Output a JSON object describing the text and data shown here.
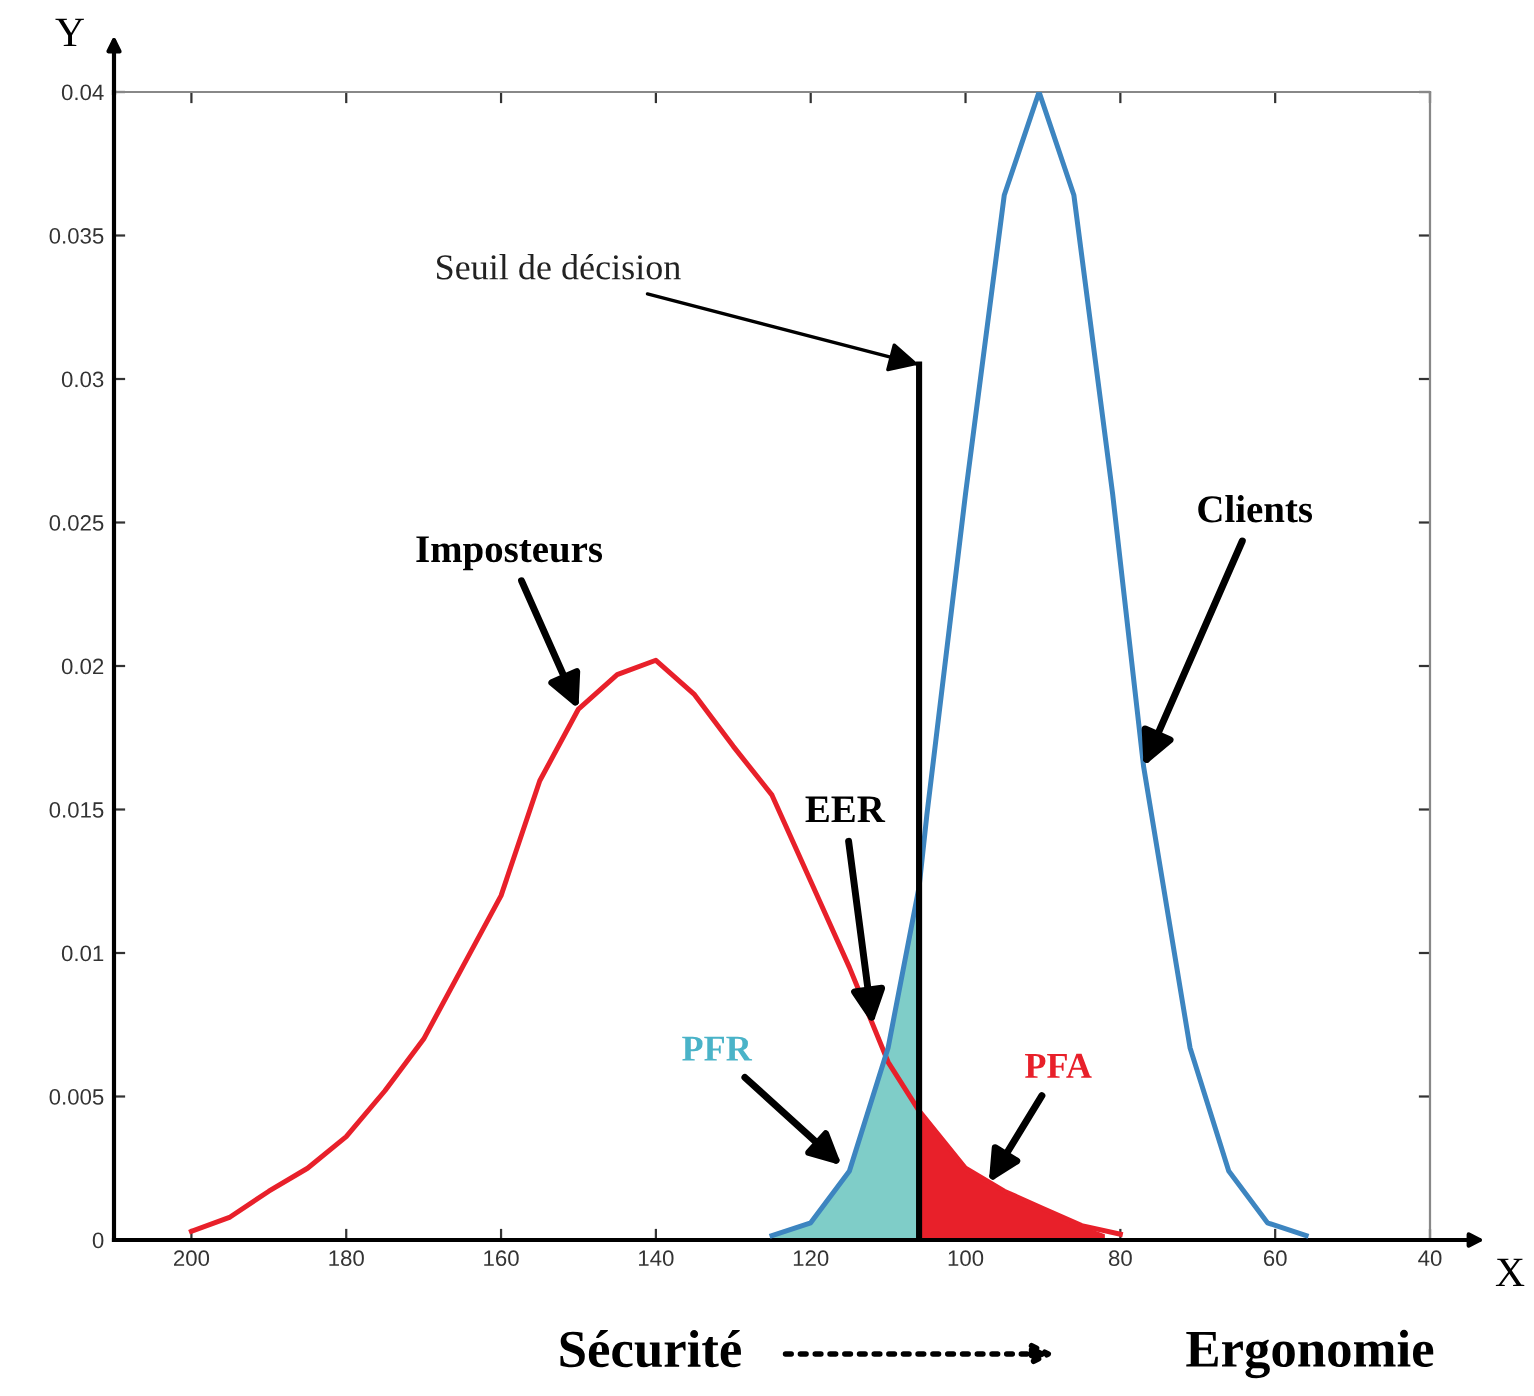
{
  "chart_data": {
    "type": "line",
    "xlabel": "X",
    "ylabel": "Y",
    "xlim": [
      210,
      40
    ],
    "ylim": [
      0,
      0.04
    ],
    "xticks": [
      200,
      180,
      160,
      140,
      120,
      100,
      80,
      60,
      40
    ],
    "yticks": [
      0,
      0.005,
      0.01,
      0.015,
      0.02,
      0.025,
      0.03,
      0.035,
      0.04
    ],
    "grid": false,
    "legend": false,
    "marker": "none",
    "line_style": "solid",
    "series": [
      {
        "type": "area",
        "color": "#7fcdc8",
        "x": [
          125,
          120,
          115,
          110,
          106
        ],
        "values": [
          0.00015,
          0.0006,
          0.0024,
          0.0067,
          0.0123
        ]
      },
      {
        "type": "area",
        "color": "#e8202a",
        "x": [
          106,
          100,
          95,
          90,
          85,
          82
        ],
        "values": [
          0.0045,
          0.0025,
          0.0017,
          0.0011,
          0.0005,
          0.0002
        ]
      },
      {
        "type": "line",
        "color": "#e8202a",
        "x": [
          200,
          195,
          190,
          185,
          180,
          175,
          170,
          165,
          160,
          155,
          150,
          145,
          140,
          135,
          130,
          125,
          120,
          115,
          110,
          106,
          100,
          95,
          90,
          85,
          80
        ],
        "values": [
          0.0003,
          0.0008,
          0.0017,
          0.0025,
          0.0036,
          0.0052,
          0.007,
          0.0095,
          0.012,
          0.016,
          0.0185,
          0.0197,
          0.0202,
          0.019,
          0.0172,
          0.0155,
          0.0125,
          0.0095,
          0.0062,
          0.0045,
          0.0025,
          0.0017,
          0.0011,
          0.0005,
          0.0002
        ]
      },
      {
        "type": "line",
        "color": "#3d85c0",
        "x": [
          125,
          120,
          115,
          110,
          106,
          105,
          100,
          95,
          90.5,
          86,
          81,
          77,
          71,
          66,
          61,
          56
        ],
        "values": [
          0.00015,
          0.0006,
          0.0024,
          0.0067,
          0.0123,
          0.0148,
          0.026,
          0.0364,
          0.04,
          0.0364,
          0.026,
          0.0165,
          0.0067,
          0.0024,
          0.0006,
          0.00015
        ]
      },
      {
        "type": "line",
        "color": "#000000",
        "x": [
          106,
          106
        ],
        "values": [
          0,
          0.0305
        ]
      }
    ],
    "annotations": [
      {
        "text": "Seuil de décision",
        "x": 106,
        "y": 0.0305
      },
      {
        "text": "Clients",
        "x": 77,
        "y": 0.0165
      },
      {
        "text": "Imposteurs",
        "x": 150,
        "y": 0.0185
      },
      {
        "text": "EER",
        "x": 112,
        "y": 0.0075
      },
      {
        "text": "PFR",
        "x": 116,
        "y": 0.0026
      },
      {
        "text": "PFA",
        "x": 97,
        "y": 0.002
      },
      "Sécurité",
      "Ergonomie"
    ]
  }
}
